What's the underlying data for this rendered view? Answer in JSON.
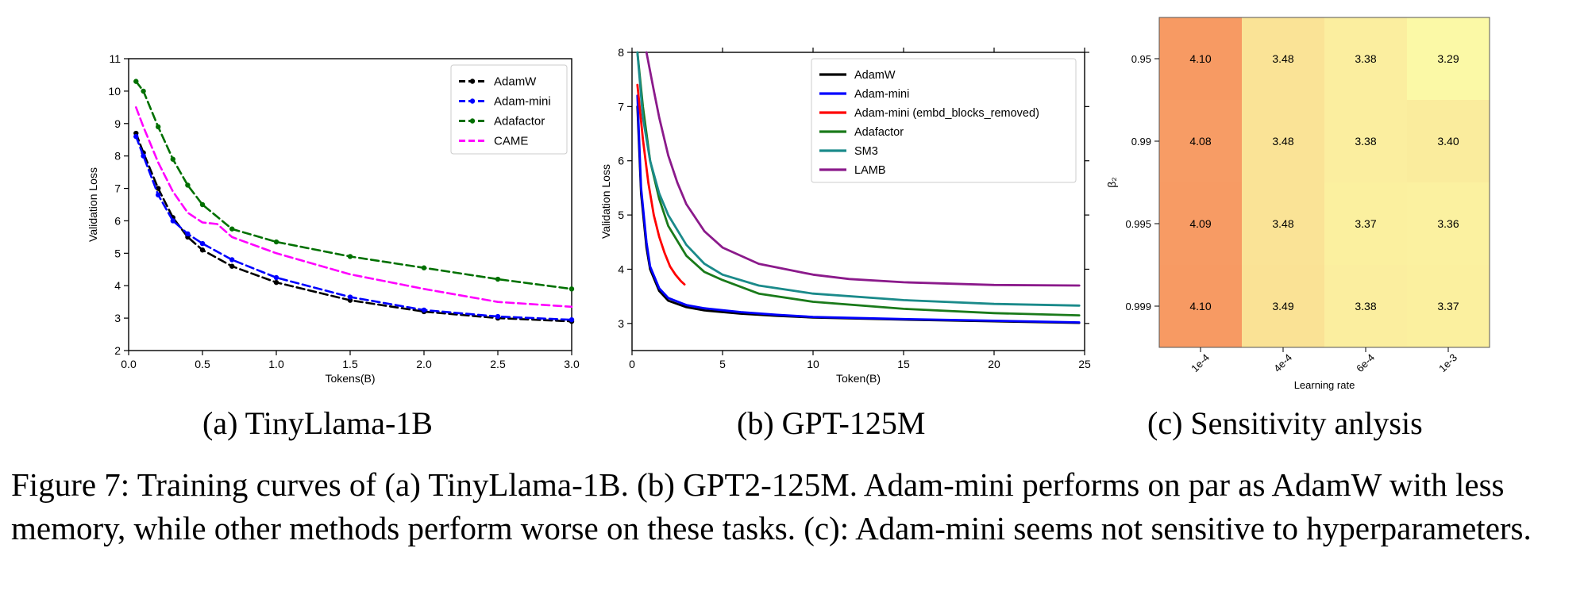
{
  "chart_data": [
    {
      "type": "line",
      "title": "",
      "xlabel": "Tokens(B)",
      "ylabel": "Validation Loss",
      "xlim": [
        0,
        3.0
      ],
      "ylim": [
        2,
        11
      ],
      "xticks": [
        "0.0",
        "0.5",
        "1.0",
        "1.5",
        "2.0",
        "2.5",
        "3.0"
      ],
      "yticks": [
        "2",
        "3",
        "4",
        "5",
        "6",
        "7",
        "8",
        "9",
        "10",
        "11"
      ],
      "legend_position": "top-right",
      "series": [
        {
          "name": "AdamW",
          "color": "#000000",
          "style": "dash-marker",
          "x": [
            0.05,
            0.1,
            0.2,
            0.3,
            0.4,
            0.5,
            0.7,
            1.0,
            1.5,
            2.0,
            2.5,
            3.0
          ],
          "y": [
            8.7,
            8.1,
            7.0,
            6.1,
            5.5,
            5.1,
            4.6,
            4.1,
            3.55,
            3.2,
            3.0,
            2.9
          ]
        },
        {
          "name": "Adam-mini",
          "color": "#0000ff",
          "style": "dash-marker",
          "x": [
            0.05,
            0.1,
            0.2,
            0.3,
            0.4,
            0.5,
            0.7,
            1.0,
            1.5,
            2.0,
            2.5,
            3.0
          ],
          "y": [
            8.6,
            8.0,
            6.8,
            6.0,
            5.6,
            5.3,
            4.8,
            4.25,
            3.65,
            3.25,
            3.05,
            2.95
          ]
        },
        {
          "name": "Adafactor",
          "color": "#007000",
          "style": "dash-marker",
          "x": [
            0.05,
            0.1,
            0.2,
            0.3,
            0.4,
            0.5,
            0.7,
            1.0,
            1.5,
            2.0,
            2.5,
            3.0
          ],
          "y": [
            10.3,
            10.0,
            8.9,
            7.9,
            7.1,
            6.5,
            5.75,
            5.35,
            4.9,
            4.55,
            4.2,
            3.9
          ]
        },
        {
          "name": "CAME",
          "color": "#ff00ff",
          "style": "dash",
          "x": [
            0.05,
            0.1,
            0.2,
            0.3,
            0.4,
            0.5,
            0.6,
            0.7,
            1.0,
            1.5,
            2.0,
            2.5,
            3.0
          ],
          "y": [
            9.5,
            8.9,
            7.8,
            6.9,
            6.25,
            5.95,
            5.9,
            5.5,
            5.0,
            4.35,
            3.9,
            3.5,
            3.35
          ]
        }
      ]
    },
    {
      "type": "line",
      "title": "",
      "xlabel": "Token(B)",
      "ylabel": "Validation Loss",
      "xlim": [
        0,
        25
      ],
      "ylim": [
        2.5,
        8
      ],
      "xticks": [
        "0",
        "5",
        "10",
        "15",
        "20",
        "25"
      ],
      "yticks": [
        "3",
        "4",
        "5",
        "6",
        "7",
        "8"
      ],
      "legend_position": "top-right",
      "series": [
        {
          "name": "AdamW",
          "color": "#000000",
          "x": [
            0.3,
            0.5,
            0.8,
            1.0,
            1.5,
            2.0,
            3.0,
            4.0,
            6.0,
            8.0,
            10.0,
            15.0,
            20.0,
            24.7
          ],
          "y": [
            7.0,
            5.4,
            4.4,
            4.0,
            3.6,
            3.42,
            3.3,
            3.24,
            3.18,
            3.14,
            3.11,
            3.07,
            3.04,
            3.01
          ]
        },
        {
          "name": "Adam-mini",
          "color": "#0000ff",
          "x": [
            0.3,
            0.5,
            0.8,
            1.0,
            1.5,
            2.0,
            3.0,
            4.0,
            6.0,
            8.0,
            10.0,
            15.0,
            20.0,
            24.7
          ],
          "y": [
            7.2,
            5.5,
            4.5,
            4.05,
            3.65,
            3.47,
            3.34,
            3.28,
            3.21,
            3.16,
            3.12,
            3.08,
            3.05,
            3.02
          ]
        },
        {
          "name": "Adam-mini (embd_blocks_removed)",
          "color": "#ff0000",
          "x": [
            0.3,
            0.6,
            0.9,
            1.2,
            1.5,
            1.8,
            2.1,
            2.4,
            2.7,
            2.9
          ],
          "y": [
            7.4,
            6.4,
            5.6,
            5.0,
            4.6,
            4.3,
            4.05,
            3.9,
            3.78,
            3.72
          ]
        },
        {
          "name": "Adafactor",
          "color": "#1a7a1a",
          "x": [
            0.3,
            0.6,
            1.0,
            1.5,
            2.0,
            3.0,
            4.0,
            5.0,
            7.0,
            10.0,
            15.0,
            20.0,
            24.7
          ],
          "y": [
            8.0,
            7.0,
            6.0,
            5.3,
            4.8,
            4.25,
            3.95,
            3.8,
            3.55,
            3.4,
            3.27,
            3.19,
            3.15
          ]
        },
        {
          "name": "SM3",
          "color": "#1a8a8a",
          "x": [
            0.3,
            0.6,
            1.0,
            1.5,
            2.0,
            3.0,
            4.0,
            5.0,
            7.0,
            10.0,
            15.0,
            20.0,
            24.7
          ],
          "y": [
            8.0,
            6.8,
            6.0,
            5.4,
            5.0,
            4.45,
            4.1,
            3.9,
            3.7,
            3.55,
            3.43,
            3.36,
            3.33
          ]
        },
        {
          "name": "LAMB",
          "color": "#8b1a8b",
          "x": [
            0.8,
            1.2,
            1.5,
            2.0,
            2.5,
            3.0,
            4.0,
            5.0,
            7.0,
            10.0,
            12.0,
            15.0,
            20.0,
            24.7
          ],
          "y": [
            8.0,
            7.3,
            6.8,
            6.1,
            5.6,
            5.2,
            4.7,
            4.4,
            4.1,
            3.9,
            3.82,
            3.76,
            3.71,
            3.7
          ]
        }
      ]
    },
    {
      "type": "heatmap",
      "title": "",
      "xlabel": "Learning rate",
      "ylabel": "β₂",
      "x_categories": [
        "1e-4",
        "4e-4",
        "6e-4",
        "1e-3"
      ],
      "y_categories": [
        "0.95",
        "0.99",
        "0.995",
        "0.999"
      ],
      "values": [
        [
          4.1,
          3.48,
          3.38,
          3.29
        ],
        [
          4.08,
          3.48,
          3.38,
          3.4
        ],
        [
          4.09,
          3.48,
          3.37,
          3.36
        ],
        [
          4.1,
          3.49,
          3.38,
          3.37
        ]
      ],
      "value_labels": [
        [
          "4.10",
          "3.48",
          "3.38",
          "3.29"
        ],
        [
          "4.08",
          "3.48",
          "3.38",
          "3.40"
        ],
        [
          "4.09",
          "3.48",
          "3.37",
          "3.36"
        ],
        [
          "4.10",
          "3.49",
          "3.38",
          "3.37"
        ]
      ],
      "colormap": {
        "low": "#fbf9a6",
        "high": "#f79a63"
      }
    }
  ],
  "subcaptions": {
    "a": "(a) TinyLlama-1B",
    "b": "(b) GPT-125M",
    "c": "(c) Sensitivity anlysis"
  },
  "caption": "Figure 7: Training curves of (a) TinyLlama-1B. (b) GPT2-125M. Adam-mini performs on par as AdamW with less memory, while other methods perform worse on these tasks. (c): Adam-mini seems not sensitive to hyperparameters."
}
